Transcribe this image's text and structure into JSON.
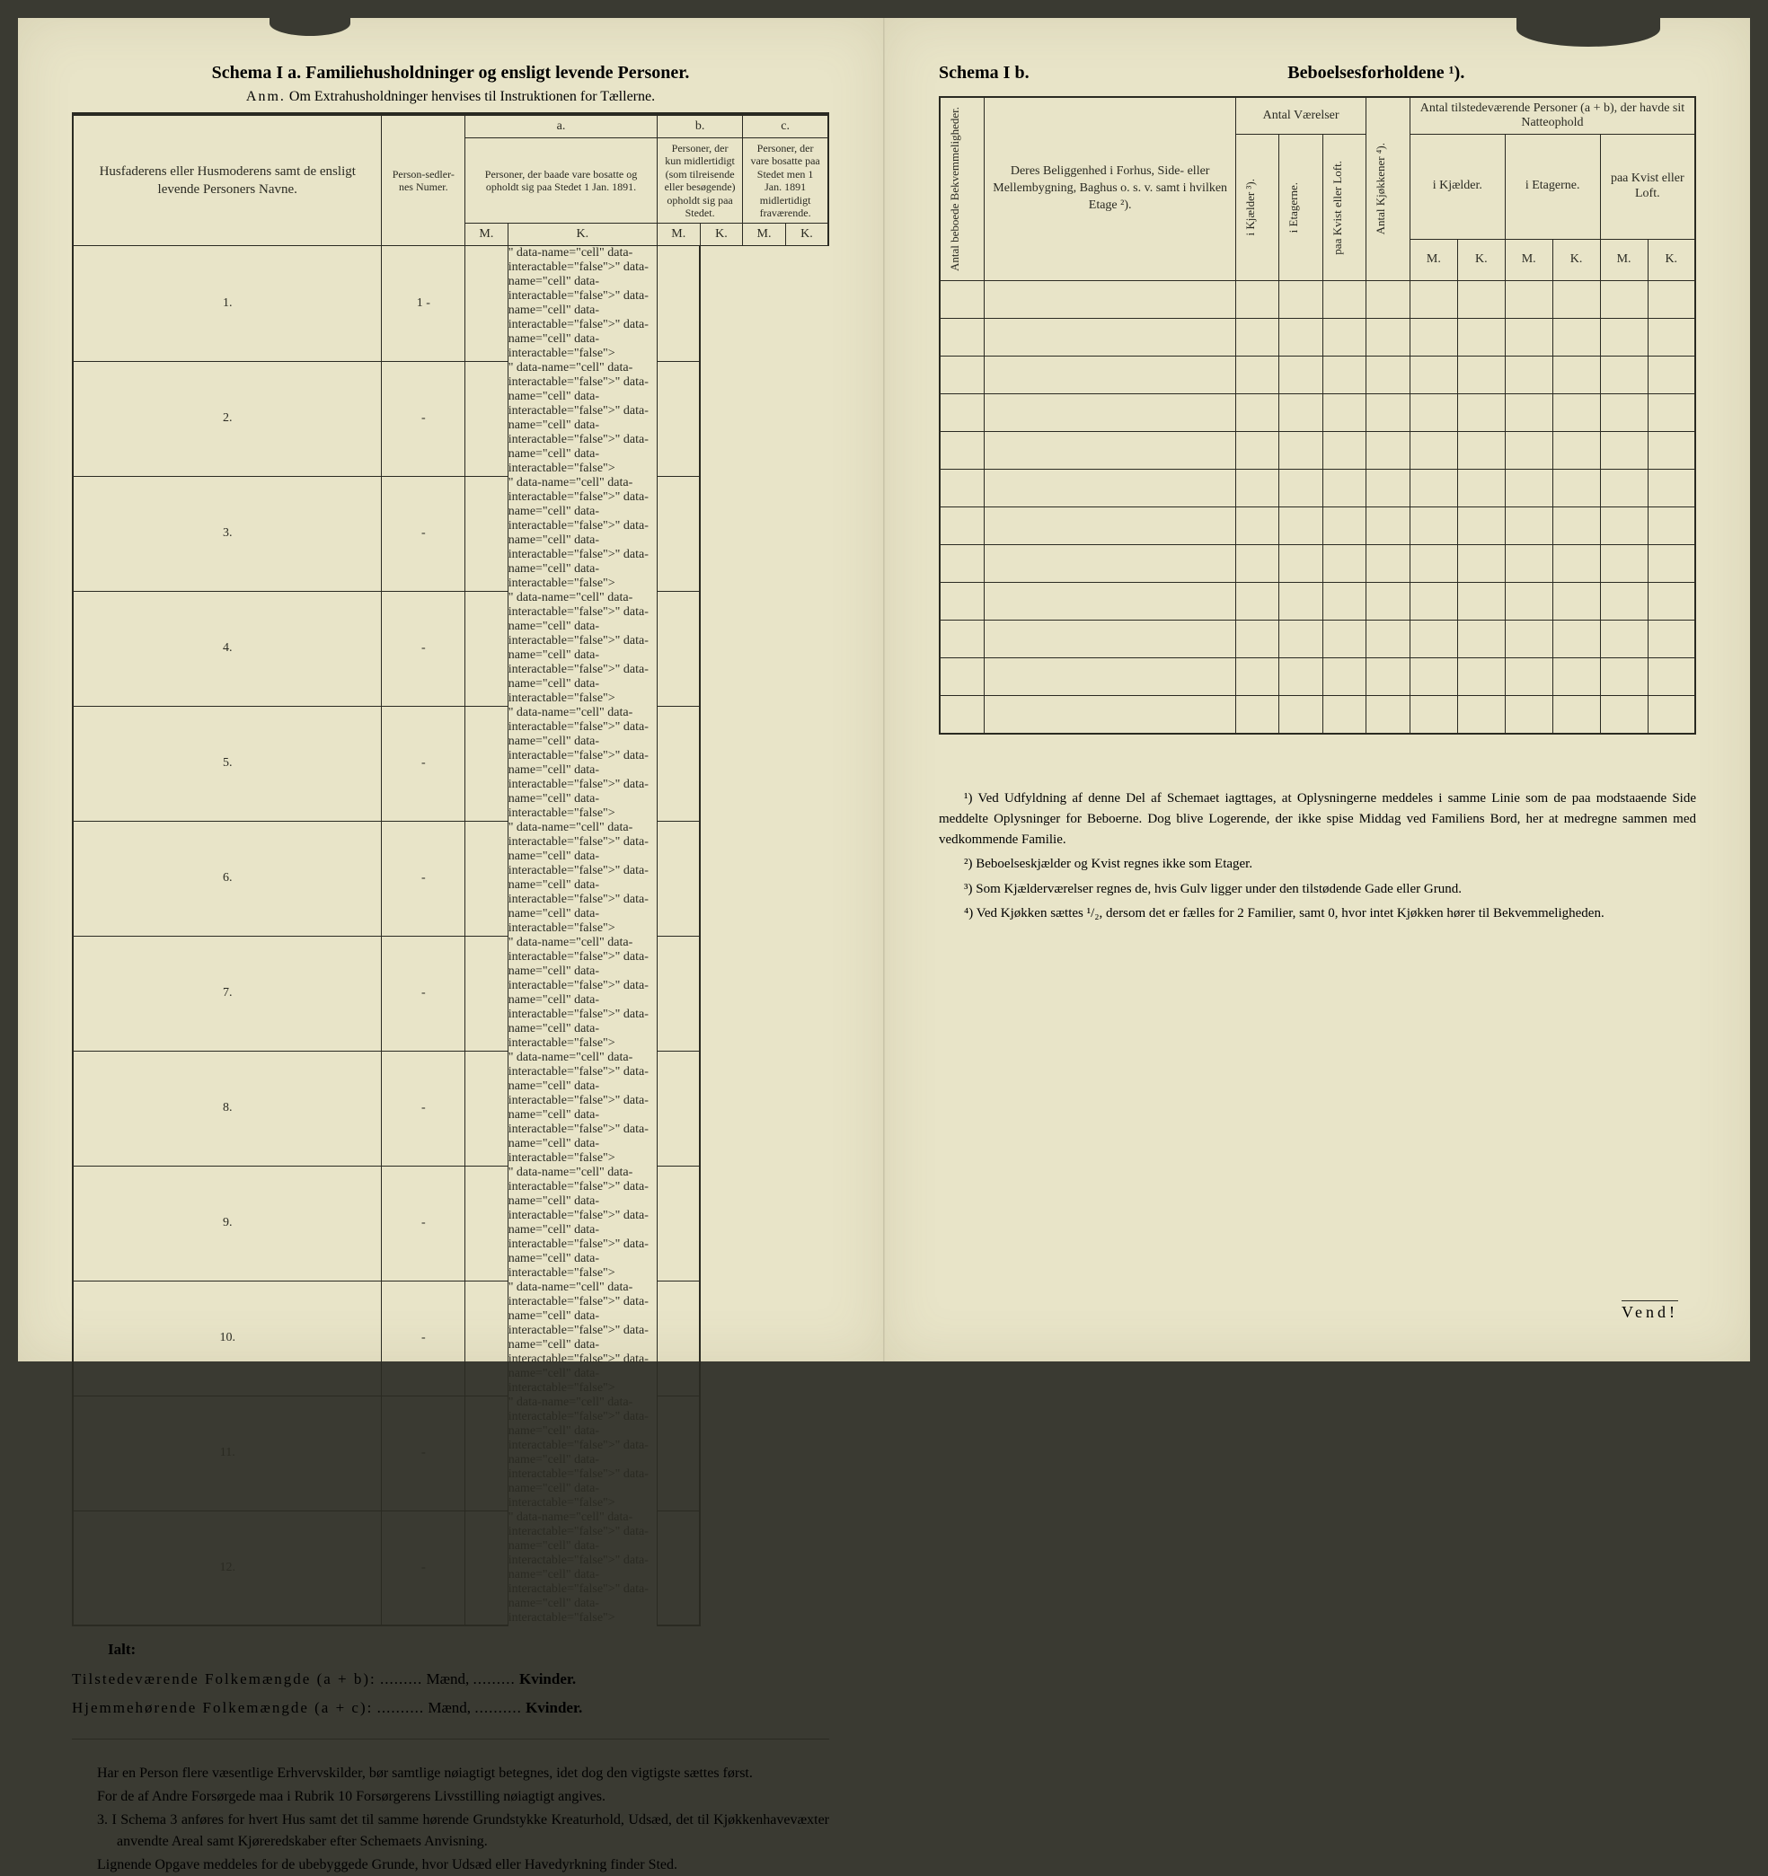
{
  "left": {
    "title": "Schema I a.  Familiehusholdninger og ensligt levende Personer.",
    "anm_label": "Anm.",
    "anm_text": "Om Extrahusholdninger henvises til Instruktionen for Tællerne.",
    "headers": {
      "names": "Husfaderens eller Husmoderens samt de ensligt levende Personers Navne.",
      "numer": "Person-sedler-nes Numer.",
      "a": "a.",
      "b": "b.",
      "c": "c.",
      "a_text": "Personer, der baade vare bosatte og opholdt sig paa Stedet 1 Jan. 1891.",
      "b_text": "Personer, der kun midlertidigt (som tilreisende eller besøgende) opholdt sig paa Stedet.",
      "c_text": "Personer, der vare bosatte paa Stedet men 1 Jan. 1891 midlertidigt fraværende.",
      "M": "M.",
      "K": "K."
    },
    "rows": [
      "1.",
      "2.",
      "3.",
      "4.",
      "5.",
      "6.",
      "7.",
      "8.",
      "9.",
      "10.",
      "11.",
      "12."
    ],
    "row1_numer": "1 -",
    "dash": "-",
    "ialt": {
      "label": "Ialt:",
      "line1_a": "Tilstedeværende Folkemængde (a + b):",
      "line2_a": "Hjemmehørende Folkemængde (a + c):",
      "maend": "Mænd,",
      "kvinder": "Kvinder.",
      "dots": ".........",
      "dots2": ".........."
    },
    "notes": {
      "p1": "Har en Person flere væsentlige Erhvervskilder, bør samtlige nøiagtigt betegnes, idet dog den vigtigste sættes først.",
      "p2": "For de af Andre Forsørgede maa i Rubrik 10 Forsørgerens Livsstilling nøiagtigt angives.",
      "p3_num": "3.",
      "p3": "I Schema 3 anføres for hvert Hus samt det til samme hørende Grundstykke Kreaturhold, Udsæd, det til Kjøkkenhavevæxter anvendte Areal samt Kjøreredskaber efter Schemaets Anvisning.",
      "p4": "Lignende Opgave meddeles for de ubebyggede Grunde, hvor Udsæd eller Havedyrkning finder Sted."
    }
  },
  "right": {
    "label": "Schema I b.",
    "title": "Beboelsesforholdene ¹).",
    "headers": {
      "bekv": "Antal beboede Bekvemmeligheder.",
      "belig": "Deres Beliggenhed i Forhus, Side- eller Mellembygning, Baghus o. s. v. samt i hvilken Etage ²).",
      "vaer": "Antal Værelser",
      "kjokken": "Antal Kjøkkener ⁴).",
      "tilst": "Antal tilstedeværende Personer (a + b), der havde sit Natteophold",
      "kjaelder": "i Kjælder ³).",
      "etager": "i Etagerne.",
      "kvist": "paa Kvist eller Loft.",
      "i_kjael": "i Kjælder.",
      "i_etag": "i Etagerne.",
      "paa_kvist": "paa Kvist eller Loft.",
      "M": "M.",
      "K": "K."
    },
    "row_count": 12,
    "footnotes": {
      "f1": "¹) Ved Udfyldning af denne Del af Schemaet iagttages, at Oplysningerne meddeles i samme Linie som de paa modstaaende Side meddelte Oplysninger for Beboerne. Dog blive Logerende, der ikke spise Middag ved Familiens Bord, her at medregne sammen med vedkommende Familie.",
      "f2": "²) Beboelseskjælder og Kvist regnes ikke som Etager.",
      "f3": "³) Som Kjælderværelser regnes de, hvis Gulv ligger under den tilstødende Gade eller Grund.",
      "f4": "⁴) Ved Kjøkken sættes ¹/₂, dersom det er fælles for 2 Familier, samt 0, hvor intet Kjøkken hører til Bekvemmeligheden."
    },
    "vend": "Vend!"
  },
  "colors": {
    "paper": "#e8e4c8",
    "ink": "#2a2a22",
    "bg": "#3a3a32"
  }
}
